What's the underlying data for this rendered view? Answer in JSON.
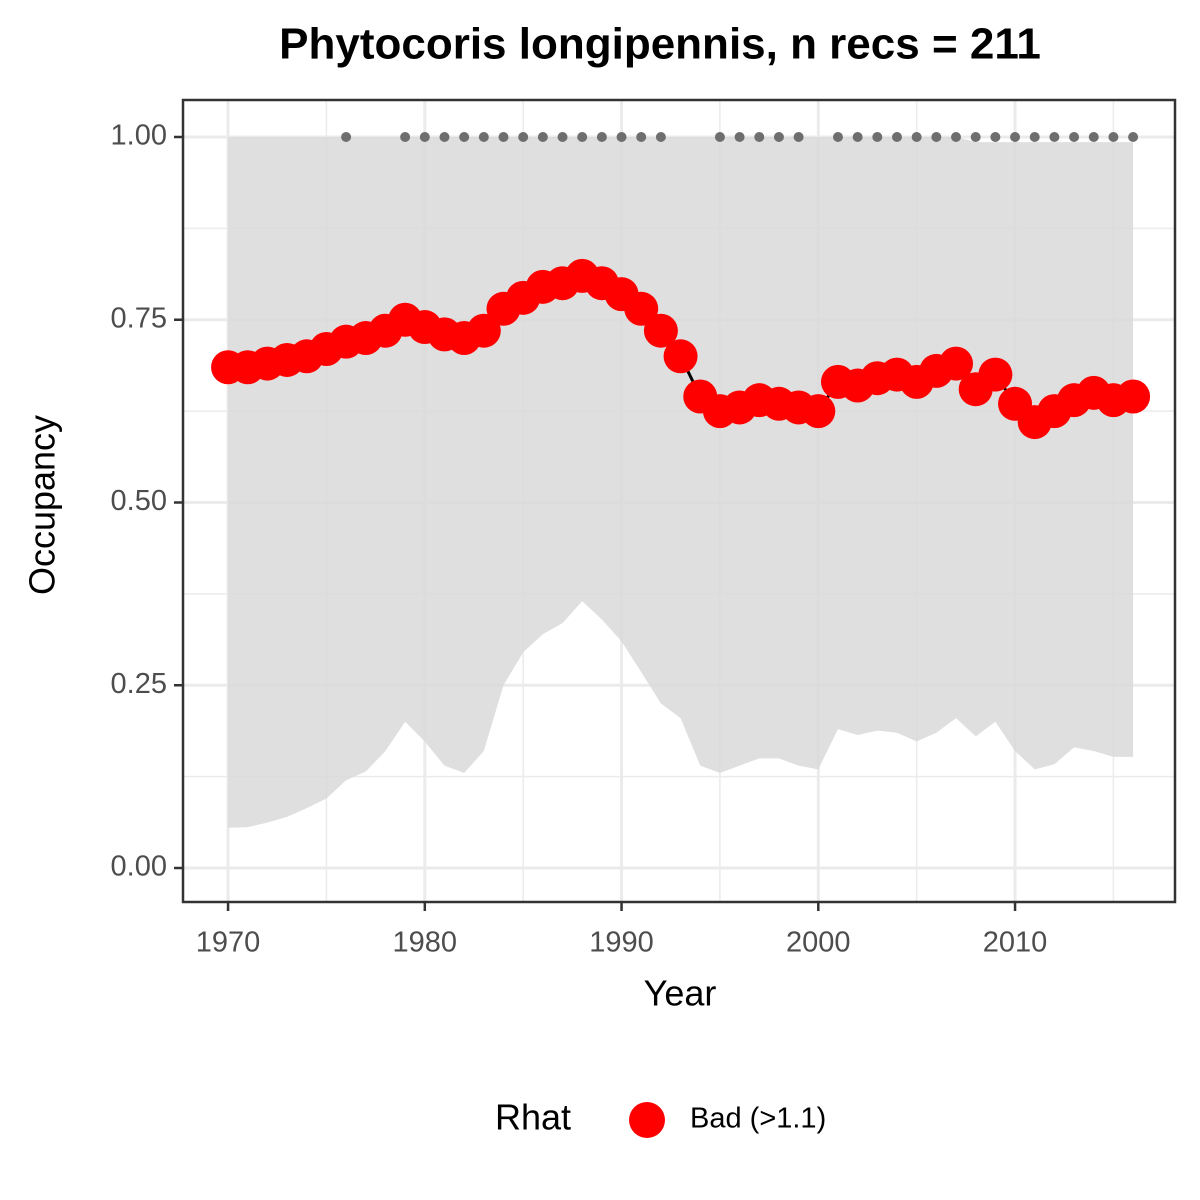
{
  "chart_data": {
    "type": "line",
    "title": "Phytocoris longipennis, n recs = 211",
    "x_label": "Year",
    "y_label": "Occupancy",
    "x": [
      1970,
      1971,
      1972,
      1973,
      1974,
      1975,
      1976,
      1977,
      1978,
      1979,
      1980,
      1981,
      1982,
      1983,
      1984,
      1985,
      1986,
      1987,
      1988,
      1989,
      1990,
      1991,
      1992,
      1993,
      1994,
      1995,
      1996,
      1997,
      1998,
      1999,
      2000,
      2001,
      2002,
      2003,
      2004,
      2005,
      2006,
      2007,
      2008,
      2009,
      2010,
      2011,
      2012,
      2013,
      2014,
      2015,
      2016
    ],
    "series": [
      {
        "name": "Bad (>1.1)",
        "color": "#ff0000",
        "values": [
          0.685,
          0.685,
          0.69,
          0.695,
          0.7,
          0.71,
          0.72,
          0.725,
          0.735,
          0.75,
          0.74,
          0.73,
          0.725,
          0.735,
          0.765,
          0.78,
          0.795,
          0.8,
          0.81,
          0.8,
          0.785,
          0.765,
          0.735,
          0.7,
          0.645,
          0.625,
          0.63,
          0.64,
          0.635,
          0.63,
          0.625,
          0.665,
          0.66,
          0.67,
          0.675,
          0.665,
          0.68,
          0.69,
          0.655,
          0.675,
          0.635,
          0.61,
          0.625,
          0.64,
          0.65,
          0.64,
          0.645
        ]
      }
    ],
    "lower": [
      0.055,
      0.056,
      0.062,
      0.07,
      0.082,
      0.095,
      0.12,
      0.132,
      0.16,
      0.2,
      0.173,
      0.14,
      0.13,
      0.16,
      0.25,
      0.295,
      0.32,
      0.335,
      0.365,
      0.34,
      0.31,
      0.268,
      0.225,
      0.205,
      0.14,
      0.13,
      0.14,
      0.15,
      0.15,
      0.14,
      0.135,
      0.19,
      0.182,
      0.188,
      0.185,
      0.173,
      0.185,
      0.205,
      0.18,
      0.2,
      0.16,
      0.135,
      0.142,
      0.165,
      0.16,
      0.152,
      0.152
    ],
    "upper": [
      1,
      1,
      1,
      1,
      1,
      1,
      1,
      1,
      1,
      1,
      1,
      1,
      1,
      1,
      1,
      1,
      1,
      1,
      1,
      1,
      1,
      1,
      1,
      1,
      1,
      1,
      1,
      1,
      1,
      1,
      1,
      1,
      1,
      1,
      1,
      1,
      1,
      1,
      0.993,
      0.993,
      0.993,
      0.993,
      0.993,
      0.993,
      0.993,
      0.993,
      0.993
    ],
    "ribbon_color": "#d9d9d9",
    "line_color": "#000000",
    "records": {
      "color": "#6e6e6e",
      "x": [
        1976,
        1979,
        1980,
        1981,
        1982,
        1983,
        1984,
        1985,
        1986,
        1987,
        1988,
        1989,
        1990,
        1991,
        1992,
        1995,
        1996,
        1997,
        1998,
        1999,
        2001,
        2002,
        2003,
        2004,
        2005,
        2006,
        2007,
        2008,
        2009,
        2010,
        2011,
        2012,
        2013,
        2014,
        2015,
        2016
      ],
      "values": [
        1,
        1,
        1,
        1,
        1,
        1,
        1,
        1,
        1,
        1,
        1,
        1,
        1,
        1,
        1,
        1,
        1,
        1,
        1,
        1,
        1,
        1,
        1,
        1,
        1,
        1,
        1,
        1,
        1,
        1,
        1,
        1,
        1,
        1,
        1,
        1
      ]
    },
    "legend_title": "Rhat",
    "legend": "bottom",
    "xlim": [
      1967.71,
      2018.13
    ],
    "ylim": [
      -0.0465,
      1.0506
    ],
    "xticks": [
      1970,
      1980,
      1990,
      2000,
      2010
    ],
    "yticks": [
      {
        "value": 0,
        "label": "0.00"
      },
      {
        "value": 0.25,
        "label": "0.25"
      },
      {
        "value": 0.5,
        "label": "0.50"
      },
      {
        "value": 0.75,
        "label": "0.75"
      },
      {
        "value": 1,
        "label": "1.00"
      }
    ],
    "x_minor_ticks": [
      1975,
      1985,
      1995,
      2005,
      2015
    ],
    "y_minor_ticks": [
      0.125,
      0.375,
      0.625,
      0.875
    ],
    "grid": true
  }
}
